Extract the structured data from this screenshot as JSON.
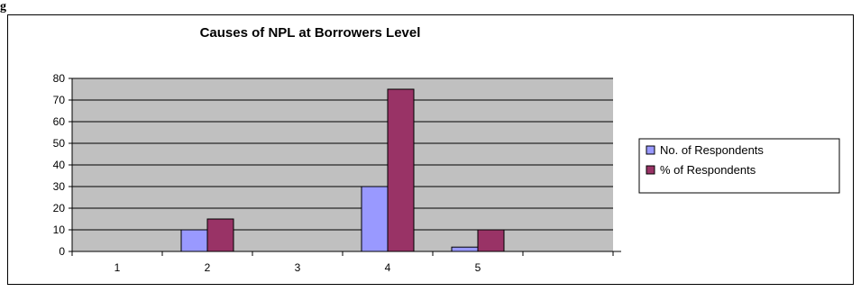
{
  "page": {
    "corner_label": "g"
  },
  "chart_data": {
    "type": "bar",
    "title": "Causes of NPL  at Borrowers Level",
    "xlabel": "",
    "ylabel": "",
    "categories": [
      "1",
      "2",
      "3",
      "4",
      "5",
      ""
    ],
    "series": [
      {
        "name": "No. of Respondents",
        "values": [
          0,
          10,
          0,
          30,
          2,
          0
        ],
        "color": "#9999ff"
      },
      {
        "name": "% of Respondents",
        "values": [
          0,
          15,
          0,
          75,
          10,
          0
        ],
        "color": "#993366"
      }
    ],
    "ylim": [
      0,
      80
    ],
    "yticks": [
      0,
      10,
      20,
      30,
      40,
      50,
      60,
      70,
      80
    ],
    "grid": true,
    "plot_background": "#c0c0c0",
    "legend_position": "right"
  }
}
